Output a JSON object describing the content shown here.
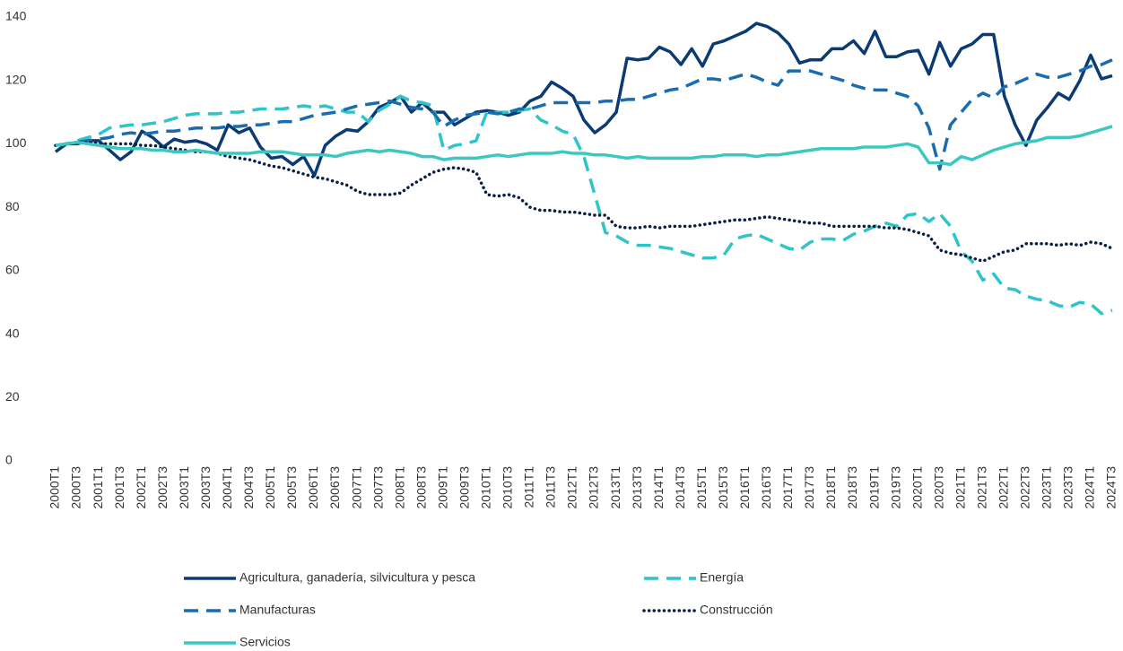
{
  "chart_data": {
    "type": "line",
    "categories": [
      "2000T1",
      null,
      "2000T3",
      null,
      "2001T1",
      null,
      "2001T3",
      null,
      "2002T1",
      null,
      "2002T3",
      null,
      "2003T1",
      null,
      "2003T3",
      null,
      "2004T1",
      null,
      "2004T3",
      null,
      "2005T1",
      null,
      "2005T3",
      null,
      "2006T1",
      null,
      "2006T3",
      null,
      "2007T1",
      null,
      "2007T3",
      null,
      "2008T1",
      null,
      "2008T3",
      null,
      "2009T1",
      null,
      "2009T3",
      null,
      "2010T1",
      null,
      "2010T3",
      null,
      "2011T1",
      null,
      "2011T3",
      null,
      "2012T1",
      null,
      "2012T3",
      null,
      "2013T1",
      null,
      "2013T3",
      null,
      "2014T1",
      null,
      "2014T3",
      null,
      "2015T1",
      null,
      "2015T3",
      null,
      "2016T1",
      null,
      "2016T3",
      null,
      "2017T1",
      null,
      "2017T3",
      null,
      "2018T1",
      null,
      "2018T3",
      null,
      "2019T1",
      null,
      "2019T3",
      null,
      "2020T1",
      null,
      "2020T3",
      null,
      "2021T1",
      null,
      "2021T3",
      null,
      "2022T1",
      null,
      "2022T3",
      null,
      "2023T1",
      null,
      "2023T3",
      null,
      "2024T1",
      null,
      "2024T3"
    ],
    "series": [
      {
        "name": "Agricultura, ganadería, silvicultura y pesca",
        "color": "#0b3b72",
        "dash": "solid",
        "values": [
          97.5,
          100,
          100,
          101,
          101,
          98,
          95,
          97.5,
          104,
          102,
          99,
          101.5,
          100.5,
          101,
          100,
          98,
          106,
          103.5,
          105,
          99,
          95.5,
          96,
          93.5,
          96,
          90,
          99.5,
          102.5,
          104.5,
          104,
          107,
          111.5,
          113,
          115,
          110,
          113,
          110,
          110,
          106,
          108,
          110,
          110.5,
          110,
          109,
          110,
          113.5,
          115,
          119.5,
          117.5,
          115,
          107.5,
          103.5,
          106,
          110,
          127,
          126.5,
          127,
          130.5,
          129,
          125,
          130,
          124.5,
          131.5,
          132.5,
          134,
          135.5,
          138,
          137,
          135,
          131.5,
          125.5,
          126.5,
          126.5,
          130,
          130,
          132.5,
          128.5,
          135.5,
          127.5,
          127.5,
          129,
          129.5,
          122,
          132,
          124.5,
          130,
          131.5,
          134.5,
          134.5,
          115,
          106,
          99.5,
          107.5,
          111.5,
          116,
          114,
          120,
          128,
          120.5,
          121.5
        ]
      },
      {
        "name": "Energía",
        "color": "#2fc5c8",
        "dash": "dashed",
        "values": [
          99.5,
          100,
          101,
          102,
          103,
          105,
          105.5,
          106,
          106,
          106.5,
          107,
          108,
          109,
          109.5,
          109.5,
          109.5,
          110,
          110,
          110.5,
          111,
          111,
          111,
          111.5,
          112,
          111.5,
          112,
          111,
          110,
          110,
          107,
          110.5,
          112.5,
          115,
          113.5,
          113,
          112,
          98,
          99.5,
          100,
          101,
          110,
          110,
          110,
          110.5,
          111,
          107.5,
          106,
          104,
          103,
          96,
          84,
          72,
          71,
          69,
          68,
          68,
          67.5,
          67,
          66,
          65,
          64,
          64,
          65,
          70,
          71,
          71.5,
          70,
          68.5,
          67,
          66.5,
          69,
          70,
          70,
          69.5,
          71.5,
          72.5,
          74,
          75,
          74,
          77.5,
          78,
          75.5,
          78,
          74,
          66,
          63,
          57,
          59,
          54.5,
          54,
          52,
          51,
          50.5,
          49,
          48.5,
          50,
          49.5,
          46.5,
          47.5
        ]
      },
      {
        "name": "Manufacturas",
        "color": "#1a6cb0",
        "dash": "dashed",
        "values": [
          99.5,
          100,
          100.5,
          101,
          101.5,
          102,
          103,
          103.5,
          103,
          103.5,
          104,
          104,
          104.5,
          105,
          105,
          105,
          105.5,
          105.5,
          106,
          106,
          106.5,
          107,
          107,
          108,
          109,
          109.5,
          110,
          111,
          112,
          112.5,
          113,
          113.5,
          112.5,
          111.5,
          111,
          110,
          105.5,
          107.5,
          109,
          109.5,
          110,
          109.5,
          110,
          111,
          111,
          112,
          113,
          113,
          113,
          113,
          113,
          113.5,
          113.5,
          114,
          114,
          115,
          116,
          117,
          117.5,
          119,
          120.5,
          120.5,
          120,
          121,
          122,
          121,
          119.5,
          118.5,
          123,
          123,
          123,
          122,
          121,
          120,
          118.5,
          117.5,
          117,
          117,
          116,
          115,
          112,
          105,
          92,
          106,
          110,
          114,
          116,
          114.5,
          118,
          119,
          120.5,
          122,
          121,
          121,
          122,
          123,
          124.5,
          125,
          126.5
        ]
      },
      {
        "name": "Construcción",
        "color": "#0a1f44",
        "dash": "dotted",
        "values": [
          99.5,
          100,
          100.5,
          100.5,
          100,
          100,
          100,
          100,
          99.5,
          99.5,
          99,
          98.5,
          98,
          97.5,
          97.5,
          97,
          96,
          95.5,
          95,
          94,
          93,
          92.5,
          91.5,
          90.5,
          89.5,
          89,
          88,
          87,
          85,
          84,
          84,
          84,
          84.5,
          87,
          89,
          91,
          92,
          92.5,
          92,
          91,
          84,
          83.5,
          84,
          83,
          80,
          79,
          79,
          78.5,
          78.5,
          78,
          77.5,
          77.5,
          74,
          73.5,
          73.5,
          74,
          73.5,
          74,
          74,
          74,
          74.5,
          75,
          75.5,
          76,
          76,
          76.5,
          77,
          76.5,
          76,
          75.5,
          75,
          75,
          74,
          74,
          74,
          74,
          74,
          73.5,
          73.5,
          73,
          72,
          71,
          66.5,
          65.5,
          65,
          64,
          63,
          64.5,
          66,
          66.5,
          68.5,
          68.5,
          68.5,
          68,
          68.5,
          68,
          69,
          68.5,
          67
        ]
      },
      {
        "name": "Servicios",
        "color": "#3cc8c0",
        "dash": "solid",
        "values": [
          99.5,
          100,
          100.5,
          100,
          99.5,
          99,
          98.5,
          98.5,
          98.5,
          98,
          98,
          97.5,
          97.5,
          98,
          97.5,
          97,
          97,
          97,
          97,
          97.5,
          97.5,
          97.5,
          97,
          96.5,
          96.5,
          96.5,
          96,
          97,
          97.5,
          98,
          97.5,
          98,
          97.5,
          97,
          96,
          96,
          95,
          95.5,
          95.5,
          95.5,
          96,
          96.5,
          96,
          96.5,
          97,
          97,
          97,
          97.5,
          97,
          97,
          96.5,
          96.5,
          96,
          95.5,
          96,
          95.5,
          95.5,
          95.5,
          95.5,
          95.5,
          96,
          96,
          96.5,
          96.5,
          96.5,
          96,
          96.5,
          96.5,
          97,
          97.5,
          98,
          98.5,
          98.5,
          98.5,
          98.5,
          99,
          99,
          99,
          99.5,
          100,
          99,
          94,
          94,
          93.5,
          96,
          95,
          96.5,
          98,
          99,
          100,
          100.5,
          101,
          102,
          102,
          102,
          102.5,
          103.5,
          104.5,
          105.5
        ]
      }
    ],
    "ylim": [
      0,
      140
    ],
    "yticks": [
      0,
      20,
      40,
      60,
      80,
      100,
      120,
      140
    ],
    "grid": false
  }
}
